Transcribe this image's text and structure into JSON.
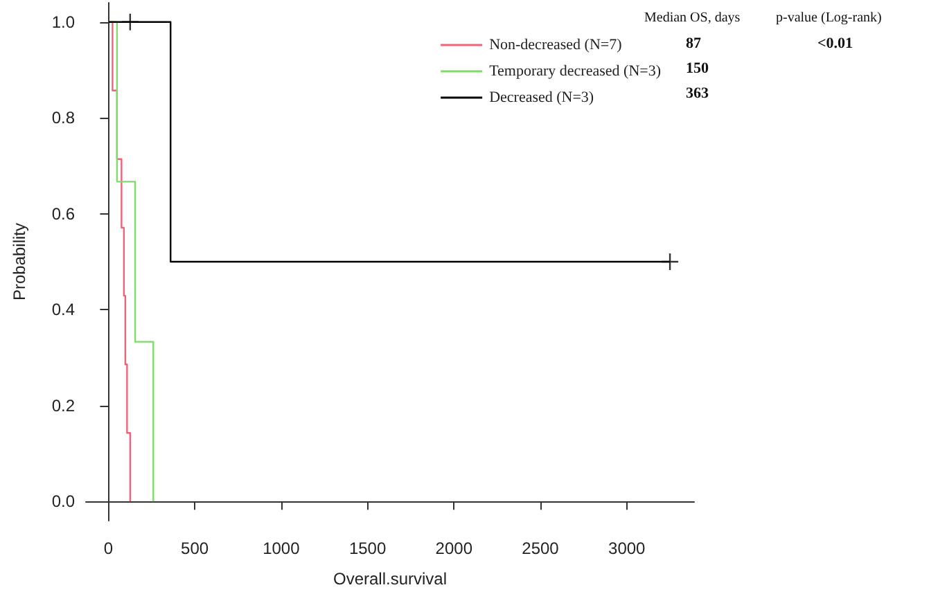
{
  "chart_data": {
    "type": "step",
    "xlabel": "Overall.survival",
    "ylabel": "Probability",
    "series": [
      {
        "name": "Non-decreased (N=7)",
        "color": "#f0627a",
        "x": [
          0,
          24,
          50,
          76,
          90,
          98,
          108,
          126
        ],
        "values": [
          1,
          0.857,
          0.714,
          0.571,
          0.429,
          0.286,
          0.143,
          0
        ]
      },
      {
        "name": "Temporary decreased (N=3)",
        "color": "#7fdc6a",
        "x": [
          0,
          50,
          155,
          260
        ],
        "values": [
          1,
          0.667,
          0.333,
          0
        ]
      },
      {
        "name": "Decreased (N=3)",
        "color": "#000000",
        "x": [
          0,
          360,
          3250
        ],
        "values": [
          1,
          0.5,
          0.5
        ]
      },
      {
        "type": "scatter",
        "color": "#000000",
        "marker": "cross",
        "x": [
          126,
          3250
        ],
        "values": [
          1,
          0.5
        ]
      }
    ],
    "xlim": [
      -130,
      3390
    ],
    "xticks": [
      0,
      500,
      1000,
      1500,
      2000,
      2500,
      3000
    ],
    "ylim": [
      -0.04,
      1.04
    ],
    "yticks": [
      {
        "value": 0,
        "label": "0.0"
      },
      {
        "value": 0.2,
        "label": "0.2"
      },
      {
        "value": 0.4,
        "label": "0.4"
      },
      {
        "value": 0.6,
        "label": "0.6"
      },
      {
        "value": 0.8,
        "label": "0.8"
      },
      {
        "value": 1,
        "label": "1.0"
      }
    ],
    "annotations": [
      "Median OS, days",
      "p-value (Log-rank)",
      "87",
      "<0.01",
      "150",
      "363"
    ],
    "grid": false,
    "legend": "top right",
    "marker": "none",
    "line_style": "solid"
  }
}
